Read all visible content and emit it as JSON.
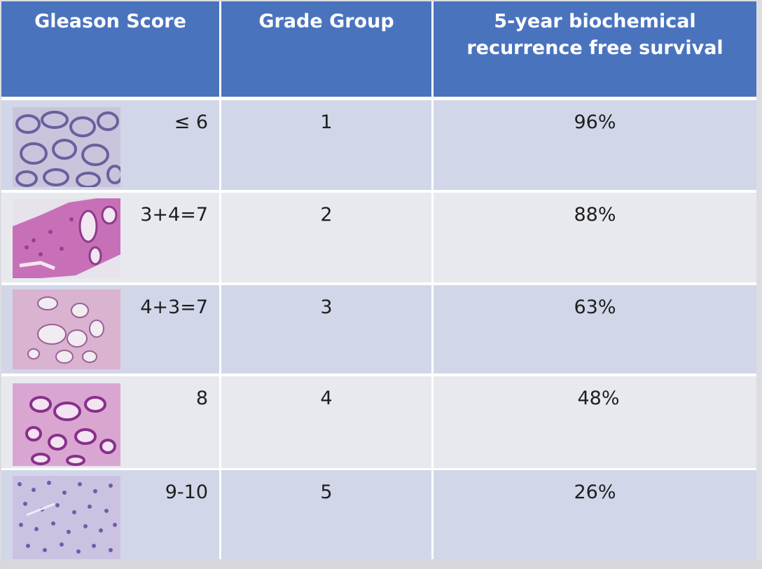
{
  "headers": {
    "gleason": "Gleason Score",
    "grade": "Grade Group",
    "survival_line1": "5-year biochemical",
    "survival_line2": "recurrence free survival"
  },
  "rows": [
    {
      "score": "≤ 6",
      "grade": "1",
      "survival": "96%",
      "image": "histology-slide-low-grade"
    },
    {
      "score": "3+4=7",
      "grade": "2",
      "survival": "88%",
      "image": "histology-slide-grade-group-2"
    },
    {
      "score": "4+3=7",
      "grade": "3",
      "survival": "63%",
      "image": "histology-slide-grade-group-3"
    },
    {
      "score": "8",
      "grade": "4",
      "survival": "48%",
      "image": "histology-slide-grade-group-4"
    },
    {
      "score": "9-10",
      "grade": "5",
      "survival": "26%",
      "image": "histology-slide-high-grade"
    }
  ],
  "colors": {
    "header_bg": "#4a73be",
    "row_shaded": "#d1d6e8",
    "row_light": "#e8e9ef"
  }
}
